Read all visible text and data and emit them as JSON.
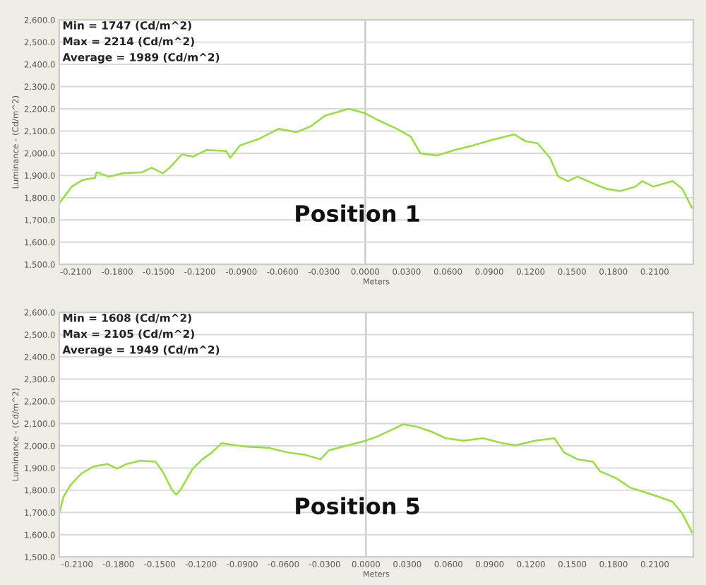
{
  "chart_data": [
    {
      "type": "line",
      "xlabel": "Meters",
      "ylabel": "Luminance - (Cd/m^2)",
      "annotations": [
        "Min = 1747 (Cd/m^2)",
        "Max = 2214 (Cd/m^2)",
        "Average = 1989 (Cd/m^2)",
        "Position 1"
      ],
      "series": [
        {
          "color": "#99dd44",
          "x": [
            -0.222,
            -0.213,
            -0.205,
            -0.196,
            -0.195,
            -0.186,
            -0.176,
            -0.162,
            -0.155,
            -0.147,
            -0.142,
            -0.133,
            -0.125,
            -0.115,
            -0.101,
            -0.098,
            -0.091,
            -0.077,
            -0.063,
            -0.05,
            -0.04,
            -0.029,
            -0.012,
            0.0,
            0.009,
            0.023,
            0.033,
            0.04,
            0.052,
            0.065,
            0.078,
            0.092,
            0.108,
            0.116,
            0.125,
            0.134,
            0.14,
            0.147,
            0.154,
            0.165,
            0.175,
            0.185,
            0.196,
            0.201,
            0.209,
            0.223,
            0.23,
            0.237
          ],
          "values": [
            1775,
            1850,
            1880,
            1890,
            1915,
            1895,
            1910,
            1915,
            1935,
            1910,
            1935,
            1995,
            1985,
            2015,
            2010,
            1980,
            2035,
            2065,
            2110,
            2095,
            2120,
            2170,
            2200,
            2180,
            2150,
            2110,
            2075,
            2000,
            1990,
            2015,
            2035,
            2060,
            2085,
            2055,
            2045,
            1980,
            1895,
            1875,
            1895,
            1865,
            1840,
            1830,
            1850,
            1875,
            1850,
            1875,
            1840,
            1755
          ]
        }
      ],
      "xlim": [
        -0.222,
        0.238
      ],
      "ylim": [
        1500,
        2600
      ],
      "xticks": [
        {
          "value": -0.21,
          "label": "-0.2100"
        },
        {
          "value": -0.18,
          "label": "-0.1800"
        },
        {
          "value": -0.15,
          "label": "-0.1500"
        },
        {
          "value": -0.12,
          "label": "-0.1200"
        },
        {
          "value": -0.09,
          "label": "-0.0900"
        },
        {
          "value": -0.06,
          "label": "-0.0600"
        },
        {
          "value": -0.03,
          "label": "-0.0300"
        },
        {
          "value": 0,
          "label": "0.0000"
        },
        {
          "value": 0.03,
          "label": "0.0300"
        },
        {
          "value": 0.06,
          "label": "0.0600"
        },
        {
          "value": 0.09,
          "label": "0.0900"
        },
        {
          "value": 0.12,
          "label": "0.1200"
        },
        {
          "value": 0.15,
          "label": "0.1500"
        },
        {
          "value": 0.18,
          "label": "0.1800"
        },
        {
          "value": 0.21,
          "label": "0.2100"
        }
      ],
      "yticks": [
        {
          "value": 1500,
          "label": "1,500.0"
        },
        {
          "value": 1600,
          "label": "1,600.0"
        },
        {
          "value": 1700,
          "label": "1,700.0"
        },
        {
          "value": 1800,
          "label": "1,800.0"
        },
        {
          "value": 1900,
          "label": "1,900.0"
        },
        {
          "value": 2000,
          "label": "2,000.0"
        },
        {
          "value": 2100,
          "label": "2,100.0"
        },
        {
          "value": 2200,
          "label": "2,200.0"
        },
        {
          "value": 2300,
          "label": "2,300.0"
        },
        {
          "value": 2400,
          "label": "2,400.0"
        },
        {
          "value": 2500,
          "label": "2,500.0"
        },
        {
          "value": 2600,
          "label": "2,600.0"
        }
      ],
      "ref_lines": [
        {
          "axis": "x",
          "value": 0,
          "color": "#c8c8c0"
        }
      ],
      "grid": "y",
      "marker": "none",
      "line_style": "solid"
    },
    {
      "type": "line",
      "xlabel": "Meters",
      "ylabel": "Luminance - (Cd/m^2)",
      "annotations": [
        "Min = 1608 (Cd/m^2)",
        "Max = 2105 (Cd/m^2)",
        "Average = 1949 (Cd/m^2)",
        "Position 5"
      ],
      "series": [
        {
          "color": "#99dd44",
          "x": [
            -0.223,
            -0.22,
            -0.215,
            -0.207,
            -0.198,
            -0.188,
            -0.181,
            -0.174,
            -0.164,
            -0.153,
            -0.148,
            -0.141,
            -0.138,
            -0.135,
            -0.126,
            -0.119,
            -0.112,
            -0.105,
            -0.095,
            -0.085,
            -0.071,
            -0.057,
            -0.044,
            -0.033,
            -0.027,
            -0.013,
            0.0,
            0.009,
            0.02,
            0.027,
            0.037,
            0.047,
            0.058,
            0.071,
            0.085,
            0.099,
            0.109,
            0.123,
            0.137,
            0.144,
            0.154,
            0.165,
            0.17,
            0.182,
            0.192,
            0.203,
            0.213,
            0.223,
            0.23,
            0.237
          ],
          "values": [
            1695,
            1770,
            1822,
            1875,
            1907,
            1918,
            1897,
            1918,
            1933,
            1928,
            1886,
            1801,
            1780,
            1801,
            1897,
            1939,
            1970,
            2012,
            2002,
            1995,
            1991,
            1970,
            1959,
            1939,
            1980,
            2002,
            2023,
            2044,
            2076,
            2097,
            2086,
            2065,
            2034,
            2023,
            2034,
            2012,
            2002,
            2023,
            2034,
            1970,
            1939,
            1928,
            1886,
            1854,
            1812,
            1791,
            1770,
            1748,
            1695,
            1611
          ]
        }
      ],
      "xlim": [
        -0.223,
        0.238
      ],
      "ylim": [
        1500,
        2600
      ],
      "xticks": [
        {
          "value": -0.21,
          "label": "-0.2100"
        },
        {
          "value": -0.18,
          "label": "-0.1800"
        },
        {
          "value": -0.15,
          "label": "-0.1500"
        },
        {
          "value": -0.12,
          "label": "-0.1200"
        },
        {
          "value": -0.09,
          "label": "-0.0900"
        },
        {
          "value": -0.06,
          "label": "-0.0600"
        },
        {
          "value": -0.03,
          "label": "-0.0300"
        },
        {
          "value": 0,
          "label": "0.0000"
        },
        {
          "value": 0.03,
          "label": "0.0300"
        },
        {
          "value": 0.06,
          "label": "0.0600"
        },
        {
          "value": 0.09,
          "label": "0.0900"
        },
        {
          "value": 0.12,
          "label": "0.1200"
        },
        {
          "value": 0.15,
          "label": "0.1500"
        },
        {
          "value": 0.18,
          "label": "0.1800"
        },
        {
          "value": 0.21,
          "label": "0.2100"
        }
      ],
      "yticks": [
        {
          "value": 1500,
          "label": "1,500.0"
        },
        {
          "value": 1600,
          "label": "1,600.0"
        },
        {
          "value": 1700,
          "label": "1,700.0"
        },
        {
          "value": 1800,
          "label": "1,800.0"
        },
        {
          "value": 1900,
          "label": "1,900.0"
        },
        {
          "value": 2000,
          "label": "2,000.0"
        },
        {
          "value": 2100,
          "label": "2,100.0"
        },
        {
          "value": 2200,
          "label": "2,200.0"
        },
        {
          "value": 2300,
          "label": "2,300.0"
        },
        {
          "value": 2400,
          "label": "2,400.0"
        },
        {
          "value": 2500,
          "label": "2,500.0"
        },
        {
          "value": 2600,
          "label": "2,600.0"
        }
      ],
      "ref_lines": [
        {
          "axis": "x",
          "value": 0,
          "color": "#c8c8c0"
        }
      ],
      "grid": "y",
      "marker": "none",
      "line_style": "solid"
    }
  ]
}
